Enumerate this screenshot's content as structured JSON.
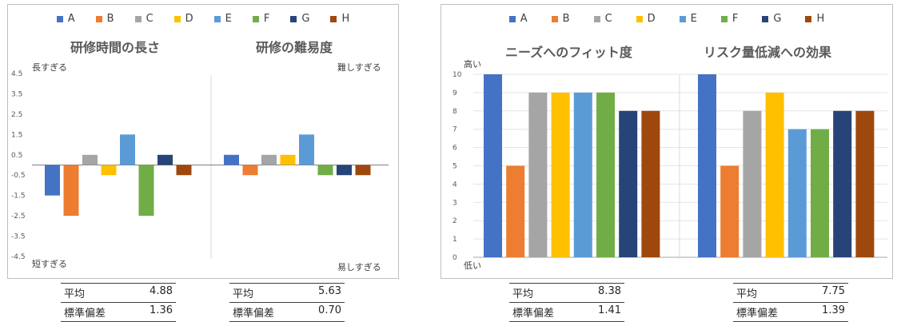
{
  "legend": [
    {
      "label": "A",
      "color": "#4472c4"
    },
    {
      "label": "B",
      "color": "#ed7d31"
    },
    {
      "label": "C",
      "color": "#a5a5a5"
    },
    {
      "label": "D",
      "color": "#ffc000"
    },
    {
      "label": "E",
      "color": "#5b9bd5"
    },
    {
      "label": "F",
      "color": "#70ad47"
    },
    {
      "label": "G",
      "color": "#264478"
    },
    {
      "label": "H",
      "color": "#9e480e"
    }
  ],
  "left_panel": {
    "chart1_title": "研修時間の長さ",
    "chart2_title": "研修の難易度",
    "top_left_label": "長すぎる",
    "bottom_left_label": "短すぎる",
    "top_right_label": "難しすぎる",
    "bottom_right_label": "易しすぎる"
  },
  "right_panel": {
    "chart1_title": "ニーズへのフィット度",
    "chart2_title": "リスク量低減への効果",
    "top_label": "高い",
    "bottom_label": "低い"
  },
  "stats": [
    {
      "avg_label": "平均",
      "avg_value": "4.88",
      "sd_label": "標準偏差",
      "sd_value": "1.36"
    },
    {
      "avg_label": "平均",
      "avg_value": "5.63",
      "sd_label": "標準偏差",
      "sd_value": "0.70"
    },
    {
      "avg_label": "平均",
      "avg_value": "8.38",
      "sd_label": "標準偏差",
      "sd_value": "1.41"
    },
    {
      "avg_label": "平均",
      "avg_value": "7.75",
      "sd_label": "標準偏差",
      "sd_value": "1.39"
    }
  ],
  "chart_data": [
    {
      "type": "bar",
      "title": "研修時間の長さ",
      "categories": [
        "A",
        "B",
        "C",
        "D",
        "E",
        "F",
        "G",
        "H"
      ],
      "values": [
        -1.5,
        -2.5,
        0.5,
        -0.5,
        1.5,
        -2.5,
        0.5,
        -0.5
      ],
      "ylim": [
        -4.5,
        4.5
      ],
      "yticks": [
        "4.5",
        "3.5",
        "2.5",
        "1.5",
        "0.5",
        "-0.5",
        "-1.5",
        "-2.5",
        "-3.5",
        "-4.5"
      ]
    },
    {
      "type": "bar",
      "title": "研修の難易度",
      "categories": [
        "A",
        "B",
        "C",
        "D",
        "E",
        "F",
        "G",
        "H"
      ],
      "values": [
        0.5,
        -0.5,
        0.5,
        0.5,
        1.5,
        -0.5,
        -0.5,
        -0.5
      ],
      "ylim": [
        -4.5,
        4.5
      ]
    },
    {
      "type": "bar",
      "title": "ニーズへのフィット度",
      "categories": [
        "A",
        "B",
        "C",
        "D",
        "E",
        "F",
        "G",
        "H"
      ],
      "values": [
        10,
        5,
        9,
        9,
        9,
        9,
        8,
        8
      ],
      "ylim": [
        0,
        10
      ],
      "yticks": [
        "10",
        "9",
        "8",
        "7",
        "6",
        "5",
        "4",
        "3",
        "2",
        "1",
        "0"
      ]
    },
    {
      "type": "bar",
      "title": "リスク量低減への効果",
      "categories": [
        "A",
        "B",
        "C",
        "D",
        "E",
        "F",
        "G",
        "H"
      ],
      "values": [
        10,
        5,
        8,
        9,
        7,
        7,
        8,
        8
      ],
      "ylim": [
        0,
        10
      ]
    }
  ]
}
